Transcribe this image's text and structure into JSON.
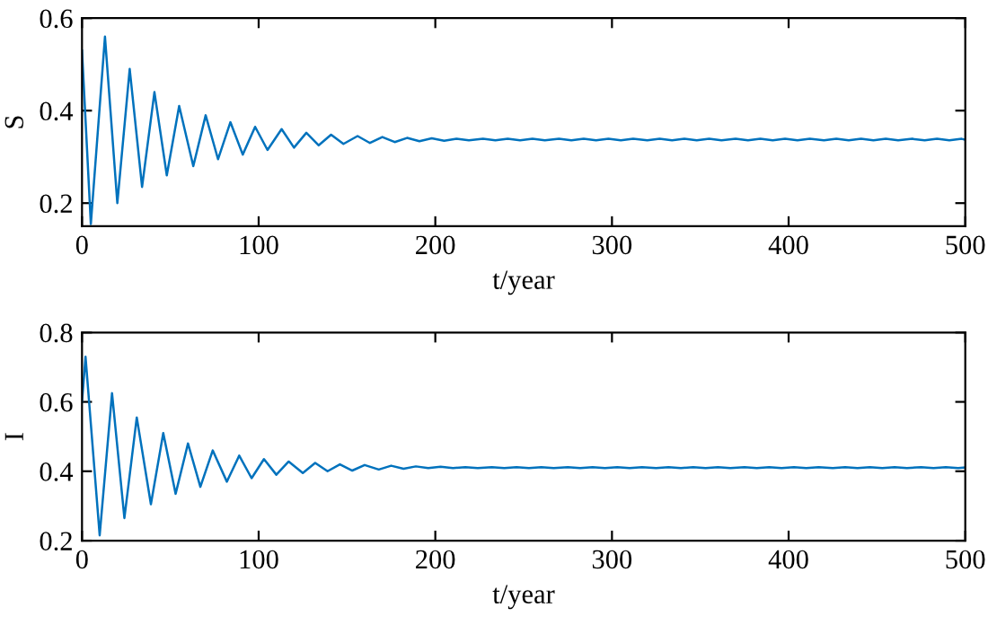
{
  "chart_data": [
    {
      "type": "line",
      "xlabel": "t/year",
      "ylabel": "S",
      "xlim": [
        0,
        500
      ],
      "xticks": [
        0,
        100,
        200,
        300,
        400,
        500
      ],
      "ylim": [
        0.15,
        0.6
      ],
      "yticks": [
        0.2,
        0.4,
        0.6
      ],
      "series": [
        {
          "color": "#0072bd",
          "x": [
            0,
            5,
            13,
            20,
            27,
            34,
            41,
            48,
            55,
            63,
            70,
            77,
            84,
            91,
            98,
            105,
            113,
            120,
            127,
            134,
            141,
            148,
            156,
            163,
            170,
            177,
            184,
            191,
            198,
            205,
            212,
            219,
            227,
            234,
            241,
            248,
            255,
            262,
            270,
            277,
            284,
            291,
            298,
            305,
            312,
            320,
            327,
            334,
            341,
            348,
            355,
            362,
            370,
            377,
            384,
            391,
            398,
            405,
            412,
            420,
            427,
            434,
            441,
            448,
            455,
            462,
            470,
            477,
            484,
            491,
            498,
            500
          ],
          "values": [
            0.53,
            0.155,
            0.56,
            0.2,
            0.49,
            0.235,
            0.44,
            0.26,
            0.41,
            0.28,
            0.39,
            0.295,
            0.375,
            0.305,
            0.365,
            0.315,
            0.36,
            0.32,
            0.352,
            0.325,
            0.348,
            0.328,
            0.345,
            0.33,
            0.343,
            0.332,
            0.341,
            0.334,
            0.34,
            0.335,
            0.339,
            0.336,
            0.339,
            0.336,
            0.339,
            0.336,
            0.339,
            0.336,
            0.339,
            0.336,
            0.339,
            0.336,
            0.339,
            0.336,
            0.339,
            0.336,
            0.339,
            0.336,
            0.339,
            0.336,
            0.339,
            0.336,
            0.339,
            0.336,
            0.339,
            0.336,
            0.339,
            0.336,
            0.339,
            0.336,
            0.339,
            0.336,
            0.339,
            0.336,
            0.339,
            0.336,
            0.339,
            0.336,
            0.339,
            0.336,
            0.339,
            0.337
          ]
        }
      ]
    },
    {
      "type": "line",
      "xlabel": "t/year",
      "ylabel": "I",
      "xlim": [
        0,
        500
      ],
      "xticks": [
        0,
        100,
        200,
        300,
        400,
        500
      ],
      "ylim": [
        0.2,
        0.8
      ],
      "yticks": [
        0.2,
        0.4,
        0.6,
        0.8
      ],
      "series": [
        {
          "color": "#0072bd",
          "x": [
            0,
            2,
            10,
            17,
            24,
            31,
            39,
            46,
            53,
            60,
            67,
            74,
            82,
            89,
            96,
            103,
            110,
            117,
            125,
            132,
            139,
            146,
            153,
            160,
            168,
            175,
            182,
            189,
            196,
            203,
            210,
            217,
            224,
            232,
            239,
            246,
            253,
            260,
            267,
            275,
            282,
            289,
            296,
            303,
            310,
            317,
            325,
            332,
            339,
            346,
            353,
            360,
            367,
            375,
            382,
            389,
            396,
            403,
            410,
            417,
            425,
            432,
            439,
            446,
            453,
            460,
            467,
            475,
            482,
            489,
            496,
            500
          ],
          "values": [
            0.6,
            0.73,
            0.215,
            0.625,
            0.265,
            0.555,
            0.305,
            0.51,
            0.335,
            0.48,
            0.355,
            0.46,
            0.37,
            0.445,
            0.38,
            0.435,
            0.39,
            0.428,
            0.395,
            0.424,
            0.4,
            0.42,
            0.402,
            0.418,
            0.405,
            0.416,
            0.407,
            0.414,
            0.409,
            0.413,
            0.409,
            0.412,
            0.409,
            0.412,
            0.409,
            0.412,
            0.409,
            0.412,
            0.409,
            0.412,
            0.409,
            0.412,
            0.409,
            0.412,
            0.409,
            0.412,
            0.409,
            0.412,
            0.409,
            0.412,
            0.409,
            0.412,
            0.409,
            0.412,
            0.409,
            0.412,
            0.409,
            0.412,
            0.409,
            0.412,
            0.409,
            0.412,
            0.409,
            0.412,
            0.409,
            0.412,
            0.409,
            0.412,
            0.409,
            0.412,
            0.409,
            0.411
          ]
        }
      ]
    }
  ]
}
